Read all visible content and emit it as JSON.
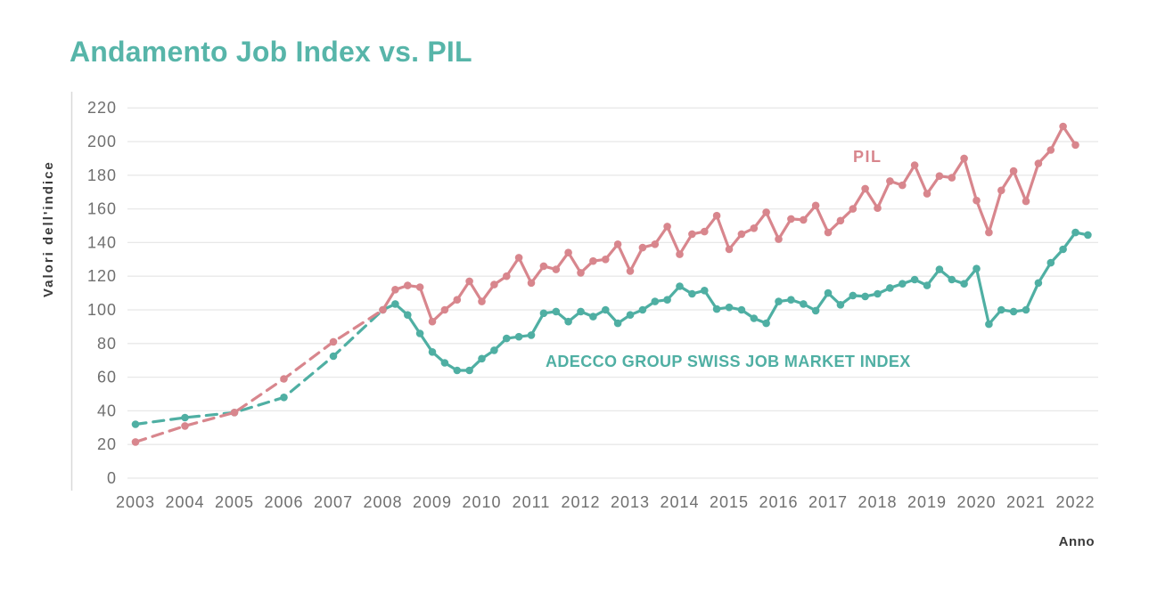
{
  "title": {
    "text": "Andamento Job Index vs. PIL",
    "color": "#57B5A9"
  },
  "axes": {
    "ylabel": "Valori dell'indice",
    "xlabel": "Anno",
    "tick_color": "#6F6F6F",
    "label_color": "#3A3A3A",
    "grid_color": "#E8E8E8",
    "axis_line_color": "#D9D9D9"
  },
  "chart_data": {
    "type": "line",
    "title": "Andamento Job Index vs. PIL",
    "xlabel": "Anno",
    "ylabel": "Valori dell'indice",
    "ylim": [
      0,
      220
    ],
    "ytick_step": 20,
    "yticks": [
      0,
      20,
      40,
      60,
      80,
      100,
      120,
      140,
      160,
      180,
      200,
      220
    ],
    "x_years": [
      2003,
      2004,
      2005,
      2006,
      2007,
      2008,
      2009,
      2010,
      2011,
      2012,
      2013,
      2014,
      2015,
      2016,
      2017,
      2018,
      2019,
      2020,
      2021,
      2022
    ],
    "grid": "horizontal",
    "legend_position": "inline-labels",
    "series": [
      {
        "name": "ADECCO GROUP SWISS JOB MARKET INDEX",
        "color": "#4FAFA3",
        "annual": {
          "style": "dashed",
          "years": [
            2003,
            2004,
            2005,
            2006,
            2007
          ],
          "values": [
            32,
            36,
            39,
            48,
            72.5
          ]
        },
        "quarterly": {
          "style": "solid",
          "start_year": 2008,
          "start_quarter": 1,
          "values": [
            100,
            103.5,
            97,
            86,
            75,
            68.5,
            64,
            64,
            71,
            76,
            83,
            84,
            85,
            98,
            99,
            93,
            99,
            96,
            100,
            92,
            97,
            100,
            105,
            106,
            114,
            109.5,
            111.5,
            100.5,
            101.5,
            100,
            95,
            92,
            105,
            106,
            103.5,
            99.5,
            110,
            103,
            108.5,
            108,
            109.5,
            113,
            115.5,
            118,
            114.5,
            124,
            118,
            115.5,
            124.5,
            91.5,
            100,
            99,
            100,
            116,
            128,
            136,
            146,
            144.5
          ]
        }
      },
      {
        "name": "PIL",
        "color": "#D8868D",
        "annual": {
          "style": "dashed",
          "years": [
            2003,
            2004,
            2005,
            2006,
            2007
          ],
          "values": [
            21.5,
            31,
            39,
            59,
            81
          ]
        },
        "quarterly": {
          "style": "solid",
          "start_year": 2008,
          "start_quarter": 1,
          "values": [
            100,
            112,
            114.5,
            113.5,
            93,
            100,
            106,
            117,
            105,
            115,
            120,
            131,
            116,
            126,
            124,
            134,
            122,
            129,
            130,
            139,
            123,
            137,
            139,
            149.5,
            133,
            145,
            146.5,
            156,
            136,
            145,
            148.5,
            158,
            142,
            154,
            153.5,
            162,
            146,
            153,
            160,
            172,
            160.5,
            176.5,
            174,
            186,
            169,
            179.5,
            178.5,
            190,
            165,
            146,
            171,
            182.5,
            164.5,
            187,
            195,
            209,
            198
          ]
        }
      }
    ]
  }
}
